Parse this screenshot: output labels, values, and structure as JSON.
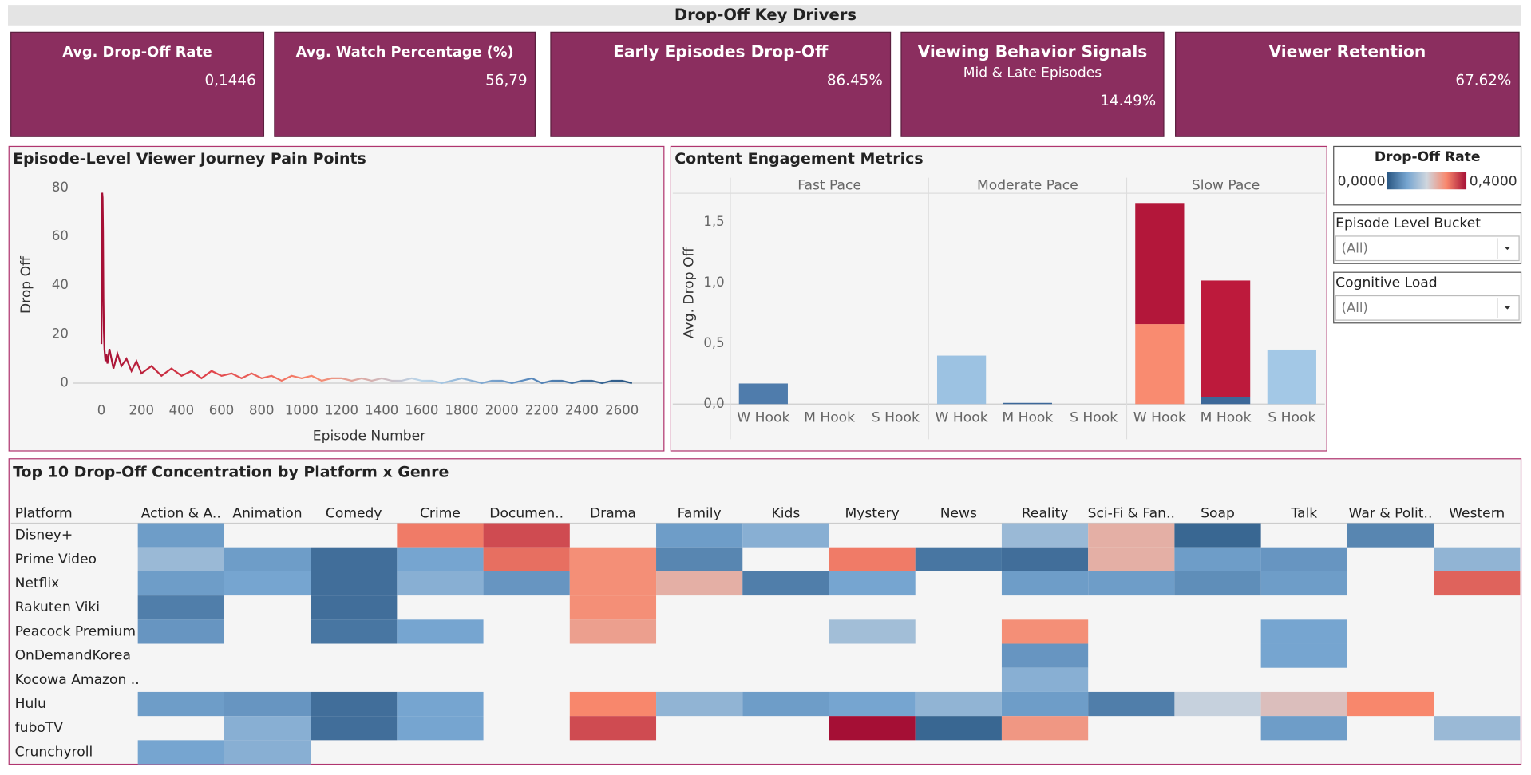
{
  "title": "Drop-Off Key Drivers",
  "kpis": [
    {
      "title": "Avg. Drop-Off Rate",
      "value": "0,1446"
    },
    {
      "title": "Avg. Watch Percentage  (%)",
      "value": "56,79"
    },
    {
      "title": "Early Episodes Drop-Off",
      "value": "86.45%"
    },
    {
      "title": "Viewing Behavior Signals",
      "subtitle": "Mid & Late Episodes",
      "value": "14.49%"
    },
    {
      "title": "Viewer Retention",
      "value": "67.62%"
    }
  ],
  "filters": [
    {
      "label": "Episode Level Bucket",
      "value": "(All)"
    },
    {
      "label": "Cognitive Load",
      "value": "(All)"
    }
  ],
  "chart_data": [
    {
      "type": "line",
      "title": "Episode-Level Viewer Journey Pain Points",
      "x_label": "Episode Number",
      "y_label": "Drop Off",
      "x": [
        0,
        2,
        4,
        6,
        8,
        10,
        12,
        15,
        20,
        25,
        30,
        40,
        50,
        60,
        80,
        100,
        125,
        150,
        175,
        200,
        250,
        300,
        350,
        400,
        450,
        500,
        550,
        600,
        650,
        700,
        750,
        800,
        850,
        900,
        950,
        1000,
        1050,
        1100,
        1150,
        1200,
        1250,
        1300,
        1350,
        1400,
        1450,
        1500,
        1550,
        1600,
        1650,
        1700,
        1750,
        1800,
        1850,
        1900,
        1950,
        2000,
        2050,
        2100,
        2150,
        2200,
        2250,
        2300,
        2350,
        2400,
        2450,
        2500,
        2550,
        2600,
        2650
      ],
      "series": [
        {
          "values": [
            16,
            40,
            78,
            76,
            62,
            35,
            22,
            14,
            9,
            12,
            8,
            14,
            10,
            6,
            12,
            7,
            10,
            5,
            9,
            4,
            7,
            3,
            6,
            3,
            5,
            2,
            5,
            3,
            4,
            2,
            4,
            2,
            3,
            1,
            3,
            2,
            3,
            1,
            2,
            2,
            1,
            2,
            1,
            2,
            1,
            1,
            2,
            1,
            1,
            0,
            1,
            2,
            1,
            0,
            1,
            1,
            0,
            1,
            2,
            0,
            1,
            1,
            0,
            1,
            1,
            0,
            1,
            1,
            0
          ],
          "gradient": [
            "#a50f35",
            "#e0434b",
            "#f8876c",
            "#b9d5ea",
            "#5b8bbf",
            "#2a5783"
          ]
        }
      ],
      "xlim": [
        -140,
        2800
      ],
      "ylim": [
        -5,
        85
      ],
      "xticks": [
        0,
        200,
        400,
        600,
        800,
        1000,
        1200,
        1400,
        1600,
        1800,
        2000,
        2200,
        2400,
        2600
      ],
      "yticks": [
        0,
        20,
        40,
        60,
        80
      ]
    },
    {
      "type": "bar",
      "stacked": true,
      "title": "Content Engagement Metrics",
      "y_label": "Avg. Drop Off",
      "facets": [
        "Fast Pace",
        "Moderate Pace",
        "Slow Pace"
      ],
      "categories": [
        "W Hook",
        "M Hook",
        "S Hook",
        "W Hook",
        "M Hook",
        "S Hook",
        "W Hook",
        "M Hook",
        "S Hook"
      ],
      "series": [
        {
          "values": [
            0.17,
            null,
            null,
            0.4,
            0.01,
            null,
            0.66,
            0.06,
            0.45
          ],
          "colors": [
            "#4f7cac",
            null,
            null,
            "#9cc2e2",
            "#3c6899",
            null,
            "#f98b70",
            "#3c6899",
            "#a3c8e6"
          ]
        },
        {
          "values": [
            null,
            null,
            null,
            null,
            null,
            null,
            1.0,
            0.96,
            null
          ],
          "colors": [
            null,
            null,
            null,
            null,
            null,
            null,
            "#b3173a",
            "#bd1a3c",
            null
          ]
        }
      ],
      "ylim": [
        0,
        1.74
      ],
      "yticks": [
        {
          "value": 0,
          "label": "0,0"
        },
        {
          "value": 0.5,
          "label": "0,5"
        },
        {
          "value": 1,
          "label": "1,0"
        },
        {
          "value": 1.5,
          "label": "1,5"
        }
      ]
    },
    {
      "type": "heatmap",
      "title": "Top 10 Drop-Off Concentration by Platform x Genre",
      "row_header": "Platform",
      "rows": [
        "Disney+",
        "Prime Video",
        "Netflix",
        "Rakuten Viki",
        "Peacock Premium",
        "OnDemandKorea",
        "Kocowa Amazon ..",
        "Hulu",
        "fuboTV",
        "Crunchyroll"
      ],
      "columns": [
        "Action & A..",
        "Animation",
        "Comedy",
        "Crime",
        "Documen..",
        "Drama",
        "Family",
        "Kids",
        "Mystery",
        "News",
        "Reality",
        "Sci-Fi & Fan..",
        "Soap",
        "Talk",
        "War & Polit..",
        "Western"
      ],
      "values": [
        [
          0.09,
          null,
          null,
          0.31,
          0.35,
          null,
          0.09,
          0.12,
          null,
          null,
          0.14,
          0.25,
          0.02,
          null,
          0.06,
          null
        ],
        [
          0.14,
          0.09,
          0.03,
          0.1,
          0.32,
          0.29,
          0.06,
          null,
          0.31,
          0.04,
          0.03,
          0.25,
          0.09,
          0.08,
          null,
          0.13
        ],
        [
          0.09,
          0.1,
          0.03,
          0.12,
          0.08,
          0.29,
          0.25,
          0.05,
          0.1,
          null,
          0.09,
          0.09,
          0.07,
          0.09,
          null,
          0.33
        ],
        [
          0.05,
          null,
          0.03,
          null,
          null,
          0.29,
          null,
          null,
          null,
          null,
          null,
          null,
          null,
          null,
          null,
          null
        ],
        [
          0.08,
          null,
          0.04,
          0.1,
          null,
          0.27,
          null,
          null,
          0.15,
          null,
          0.29,
          null,
          null,
          0.1,
          null,
          null
        ],
        [
          null,
          null,
          null,
          null,
          null,
          null,
          null,
          null,
          null,
          null,
          0.08,
          null,
          null,
          0.1,
          null,
          null
        ],
        [
          null,
          null,
          null,
          null,
          null,
          null,
          null,
          null,
          null,
          null,
          0.12,
          null,
          null,
          null,
          null,
          null
        ],
        [
          0.09,
          0.08,
          0.03,
          0.1,
          null,
          0.3,
          0.13,
          0.09,
          0.1,
          0.13,
          0.09,
          0.05,
          0.19,
          0.23,
          0.3,
          null
        ],
        [
          null,
          0.12,
          0.03,
          0.1,
          null,
          0.35,
          null,
          null,
          0.4,
          0.02,
          0.28,
          null,
          null,
          0.09,
          null,
          0.14
        ],
        [
          0.1,
          0.12,
          null,
          null,
          null,
          null,
          null,
          null,
          null,
          null,
          null,
          null,
          null,
          null,
          null,
          null
        ]
      ],
      "legend": {
        "title": "Drop-Off Rate",
        "min": {
          "value": 0,
          "label": "0,0000"
        },
        "max": {
          "value": 0.4,
          "label": "0,4000"
        },
        "colors": [
          "#2a5783",
          "#76a5d0",
          "#cfd6de",
          "#f8876c",
          "#a50f35"
        ]
      }
    }
  ]
}
